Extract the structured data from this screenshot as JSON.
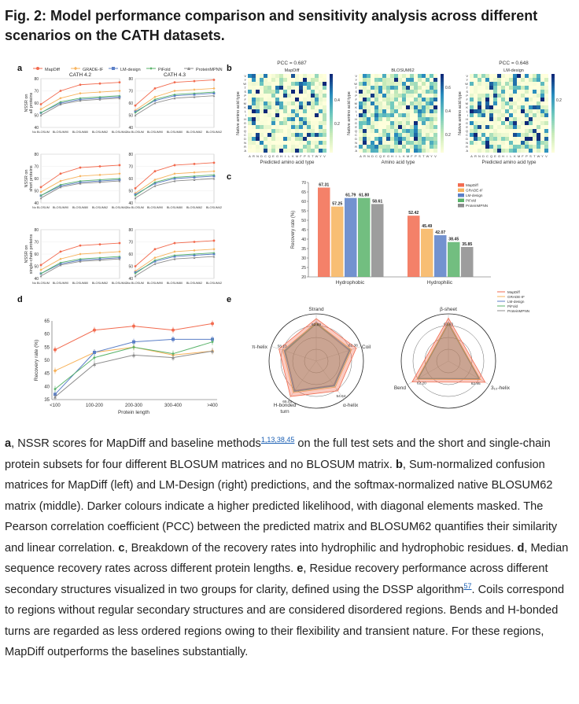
{
  "title": "Fig. 2: Model performance comparison and sensitivity analysis across different scenarios on the CATH datasets.",
  "colors": {
    "MapDiff": "#f26b4f",
    "GRADE-IF": "#f7b35c",
    "LM-design": "#5b7fc7",
    "PiFold": "#59b36a",
    "ProteinMPNN": "#8c8c8c"
  },
  "panels": {
    "a": {
      "label": "a",
      "legend": [
        "MapDiff",
        "GRADE-IF",
        "LM-design",
        "PiFold",
        "ProteinMPNN"
      ],
      "columns": [
        "CATH 4.2",
        "CATH 4.3"
      ],
      "row_ylabels": [
        "NSSR on all proteins",
        "NSSR on short proteins",
        "NSSR on single-chain proteins"
      ],
      "xticks": [
        "No BLOSUM",
        "BLOSUM90",
        "BLOSUM80",
        "BLOSUM62",
        "BLOSUM42"
      ],
      "yticks": [
        "40",
        "50",
        "60",
        "70",
        "80"
      ]
    },
    "b": {
      "label": "b",
      "matrices": [
        {
          "pcc": "PCC = 0.687",
          "name": "MapDiff",
          "xlabel": "Predicted amino acid type",
          "colorbar": [
            "0.4",
            "0.2"
          ]
        },
        {
          "pcc": "",
          "name": "BLOSUM62",
          "xlabel": "Amino acid type",
          "colorbar": [
            "0.6",
            "0.4",
            "0.2"
          ]
        },
        {
          "pcc": "PCC = 0.648",
          "name": "LM-design",
          "xlabel": "Predicted amino acid type",
          "colorbar": [
            "0.2"
          ]
        }
      ],
      "ylabel": "Native amino acid type",
      "aa_x": "ARNDCQEGHILKMFPSTWYV",
      "aa_y": "VYWTSPFMKLIHGEQCDNRA"
    },
    "c": {
      "label": "c"
    },
    "d": {
      "label": "d"
    },
    "e": {
      "label": "e"
    }
  },
  "chart_data": [
    {
      "type": "bar",
      "panel": "c",
      "categories": [
        "Hydrophobic",
        "Hydrophilic"
      ],
      "ylabel": "Recovery rate (%)",
      "ylim": [
        20,
        70
      ],
      "yticks": [
        20,
        25,
        30,
        35,
        40,
        45,
        50,
        55,
        60,
        65,
        70
      ],
      "series": [
        {
          "name": "MapDiff",
          "values": [
            67.31,
            52.42
          ],
          "labels": [
            "67.31",
            "52.42"
          ]
        },
        {
          "name": "GRADE-IF",
          "values": [
            57.25,
            45.49
          ],
          "labels": [
            "57.25",
            "45.49"
          ]
        },
        {
          "name": "LM-design",
          "values": [
            61.79,
            42.07
          ],
          "labels": [
            "61.79",
            "42.07"
          ]
        },
        {
          "name": "PiFold",
          "values": [
            61.8,
            38.45
          ],
          "labels": [
            "61.80",
            "38.45"
          ]
        },
        {
          "name": "ProteinMPNN",
          "values": [
            58.61,
            35.85
          ],
          "labels": [
            "58.61",
            "35.85"
          ]
        }
      ],
      "legend": "top-right"
    },
    {
      "type": "line",
      "panel": "d",
      "categories": [
        "<100",
        "100-200",
        "200-300",
        "300-400",
        ">400"
      ],
      "xlabel": "Protein length",
      "ylabel": "Recovery rate (%)",
      "ylim": [
        35,
        65
      ],
      "yticks": [
        35,
        40,
        45,
        50,
        55,
        60,
        65
      ],
      "series": [
        {
          "name": "MapDiff",
          "values": [
            54,
            61.5,
            63,
            61.5,
            64
          ]
        },
        {
          "name": "GRADE-IF",
          "values": [
            46,
            53,
            55,
            52,
            53.5
          ]
        },
        {
          "name": "LM-design",
          "values": [
            37,
            53,
            57,
            58,
            58
          ]
        },
        {
          "name": "PiFold",
          "values": [
            39,
            51,
            55,
            52.5,
            57
          ]
        },
        {
          "name": "ProteinMPNN",
          "values": [
            36,
            48.5,
            52,
            51,
            53.5
          ]
        }
      ]
    },
    {
      "type": "radar",
      "panel": "e-left",
      "axes": [
        "Strand",
        "Coil",
        "α-helix",
        "H-bonded turn",
        "π-helix"
      ],
      "axis_order_clockwise": [
        "Strand",
        "Coil",
        "α-helix",
        "H-bonded turn",
        "π-helix"
      ],
      "value_labels": [
        "62.89",
        "62.38",
        "54.64",
        "65.01",
        "58.13"
      ],
      "max": 70,
      "series": [
        {
          "name": "MapDiff",
          "values": [
            62.89,
            62.38,
            54.64,
            65.01,
            58.13
          ]
        },
        {
          "name": "GRADE-IF",
          "values": [
            57,
            55,
            48,
            58,
            52
          ]
        },
        {
          "name": "LM-design",
          "values": [
            58,
            52,
            45,
            55,
            50
          ]
        },
        {
          "name": "PiFold",
          "values": [
            56,
            53,
            46,
            56,
            49
          ]
        },
        {
          "name": "ProteinMPNN",
          "values": [
            55,
            51,
            44,
            54,
            48
          ]
        }
      ]
    },
    {
      "type": "radar",
      "panel": "e-right",
      "axes": [
        "β-sheet",
        "3₁₀-helix",
        "Bend"
      ],
      "value_labels": [
        "63.63",
        "62.95",
        "62.20"
      ],
      "max": 70,
      "legend": [
        "MapDiff",
        "GRADE-IF",
        "LM-design",
        "PiFold",
        "ProteinMPNN"
      ],
      "series": [
        {
          "name": "MapDiff",
          "values": [
            63.63,
            62.95,
            62.2
          ]
        },
        {
          "name": "GRADE-IF",
          "values": [
            57,
            55,
            54
          ]
        },
        {
          "name": "LM-design",
          "values": [
            58,
            54,
            53
          ]
        },
        {
          "name": "PiFold",
          "values": [
            56,
            53,
            52
          ]
        },
        {
          "name": "ProteinMPNN",
          "values": [
            55,
            52,
            51
          ]
        }
      ]
    }
  ],
  "caption": {
    "a_label": "a",
    "a_text": ", NSSR scores for MapDiff and baseline methods",
    "a_refs": "1,13,38,45",
    "a_rest": " on the full test sets and the short and single-chain protein subsets for four different BLOSUM matrices and no BLOSUM matrix. ",
    "b_label": "b",
    "b_text": ", Sum-normalized confusion matrices for MapDiff (left) and LM-Design (right) predictions, and the softmax-normalized native BLOSUM62 matrix (middle). Darker colours indicate a higher predicted likelihood, with diagonal elements masked. The Pearson correlation coefficient (PCC) between the predicted matrix and BLOSUM62 quantifies their similarity and linear correlation. ",
    "c_label": "c",
    "c_text": ", Breakdown of the recovery rates into hydrophilic and hydrophobic residues. ",
    "d_label": "d",
    "d_text": ", Median sequence recovery rates across different protein lengths. ",
    "e_label": "e",
    "e_text": ", Residue recovery performance across different secondary structures visualized in two groups for clarity, defined using the DSSP algorithm",
    "e_ref": "57",
    "e_rest": ". Coils correspond to regions without regular secondary structures and are considered disordered regions. Bends and H-bonded turns are regarded as less ordered regions owing to their flexibility and transient nature. For these regions, MapDiff outperforms the baselines substantially."
  }
}
